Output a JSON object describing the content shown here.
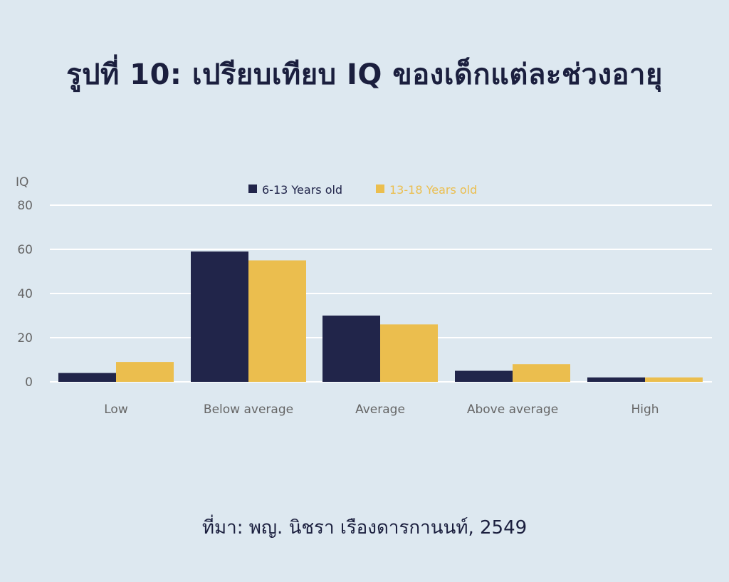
{
  "title": "รูปที่ 10: เปรียบเทียบ IQ ของเด็กแต่ละช่วงอายุ",
  "source": "ที่มา: พญ. นิชรา เรืองดารกานนท์, 2549",
  "colors": {
    "background": "#dde8f0",
    "series_1": "#21254a",
    "series_2": "#ebbe4e",
    "gridline": "#ffffff",
    "axis_text": "#666666"
  },
  "chart_data": {
    "type": "bar",
    "ylabel": "IQ",
    "xlabel": "",
    "ylim": [
      0,
      80
    ],
    "yticks": [
      0,
      20,
      40,
      60,
      80
    ],
    "grid": true,
    "legend_position": "top-center",
    "categories": [
      "Low",
      "Below average",
      "Average",
      "Above average",
      "High"
    ],
    "series": [
      {
        "name": "6-13 Years old",
        "values": [
          4,
          59,
          30,
          5,
          2
        ]
      },
      {
        "name": "13-18 Years old",
        "values": [
          9,
          55,
          26,
          8,
          2
        ]
      }
    ]
  }
}
